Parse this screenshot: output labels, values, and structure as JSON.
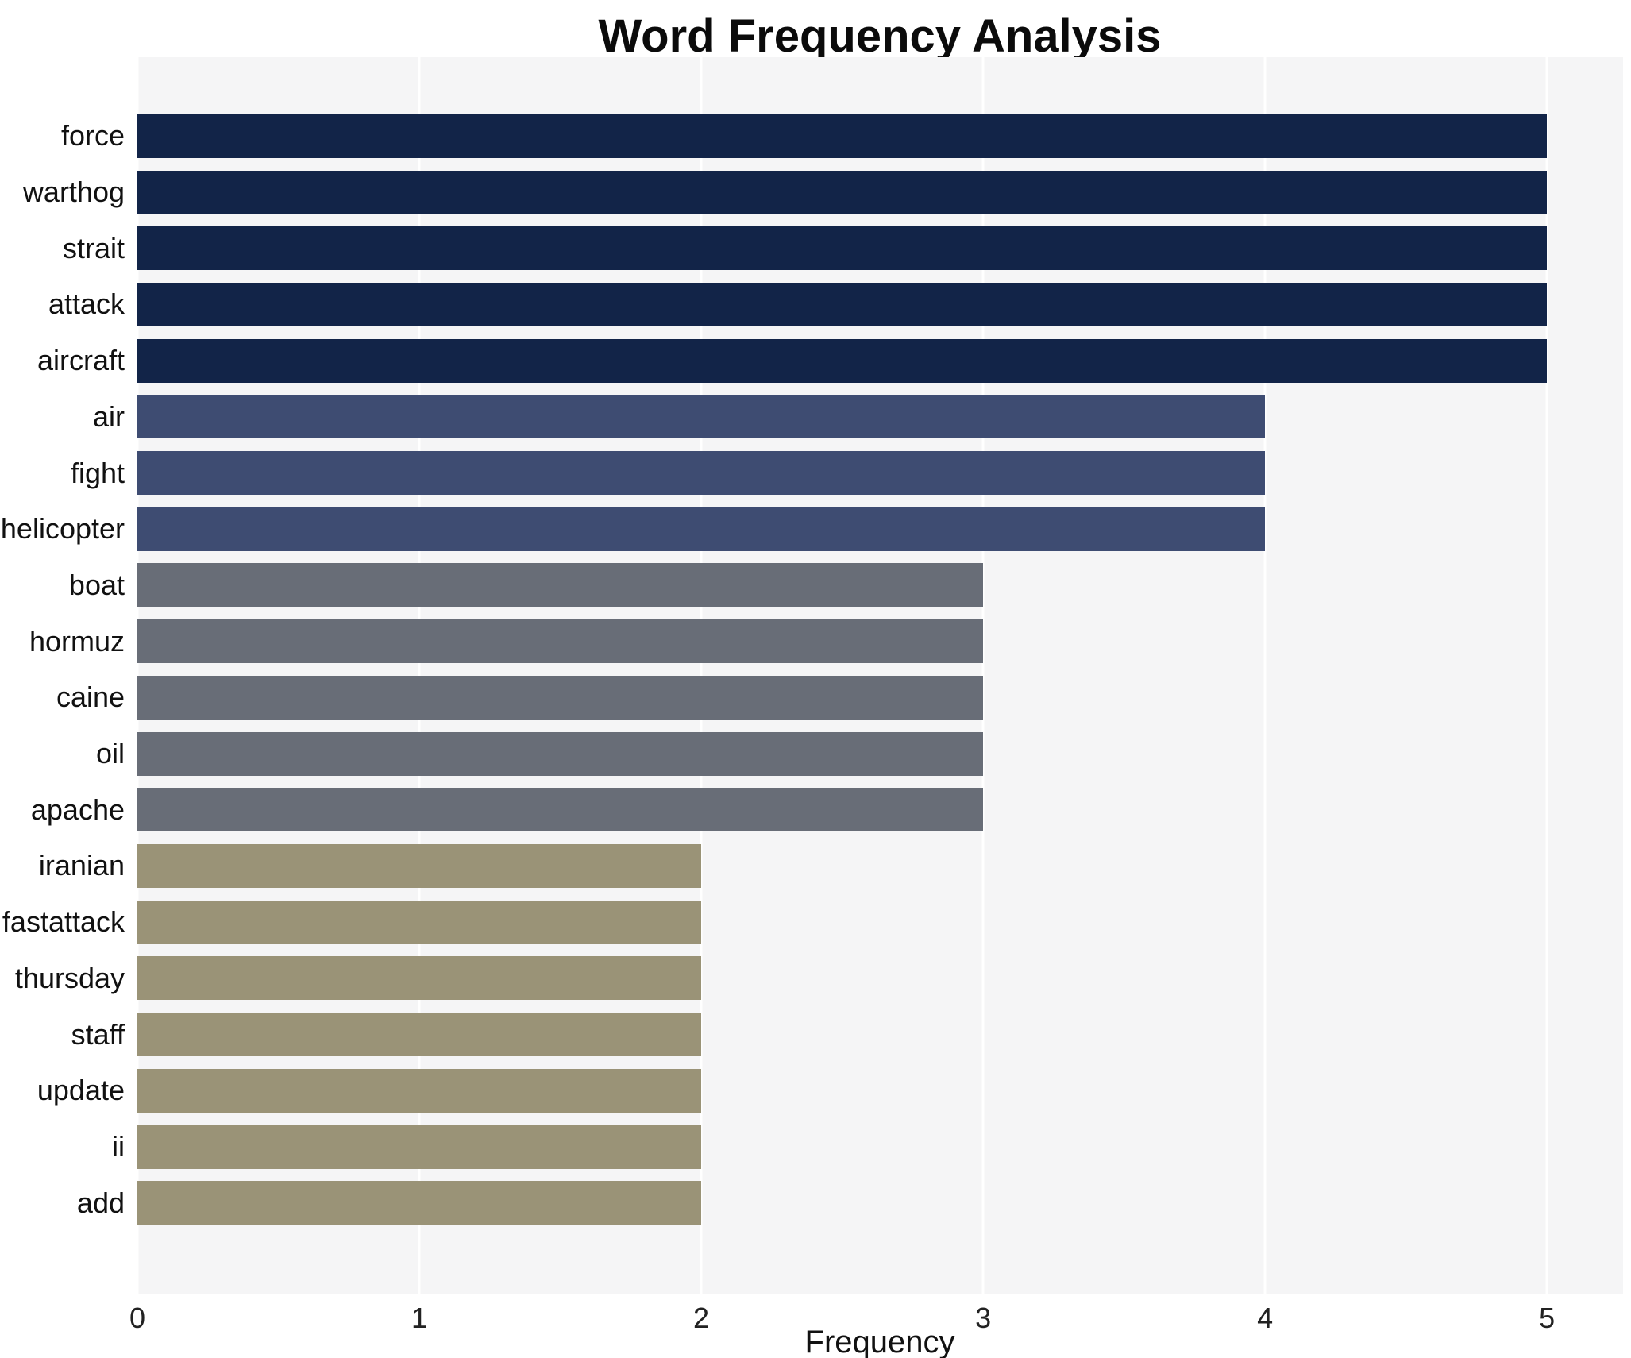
{
  "chart_data": {
    "type": "bar",
    "orientation": "horizontal",
    "title": "Word Frequency Analysis",
    "xlabel": "Frequency",
    "ylabel": "",
    "categories": [
      "force",
      "warthog",
      "strait",
      "attack",
      "aircraft",
      "air",
      "fight",
      "helicopter",
      "boat",
      "hormuz",
      "caine",
      "oil",
      "apache",
      "iranian",
      "fastattack",
      "thursday",
      "staff",
      "update",
      "ii",
      "add"
    ],
    "values": [
      5,
      5,
      5,
      5,
      5,
      4,
      4,
      4,
      3,
      3,
      3,
      3,
      3,
      2,
      2,
      2,
      2,
      2,
      2,
      2
    ],
    "x_ticks": [
      0,
      1,
      2,
      3,
      4,
      5
    ],
    "xlim": [
      0,
      5.27
    ],
    "grid": true,
    "legend": "none",
    "plot_background": "#f5f5f6",
    "gridline_color": "#ffffff",
    "colors_by_value": {
      "5": "#122448",
      "4": "#3e4c72",
      "3": "#686d77",
      "2": "#9a9377"
    }
  }
}
